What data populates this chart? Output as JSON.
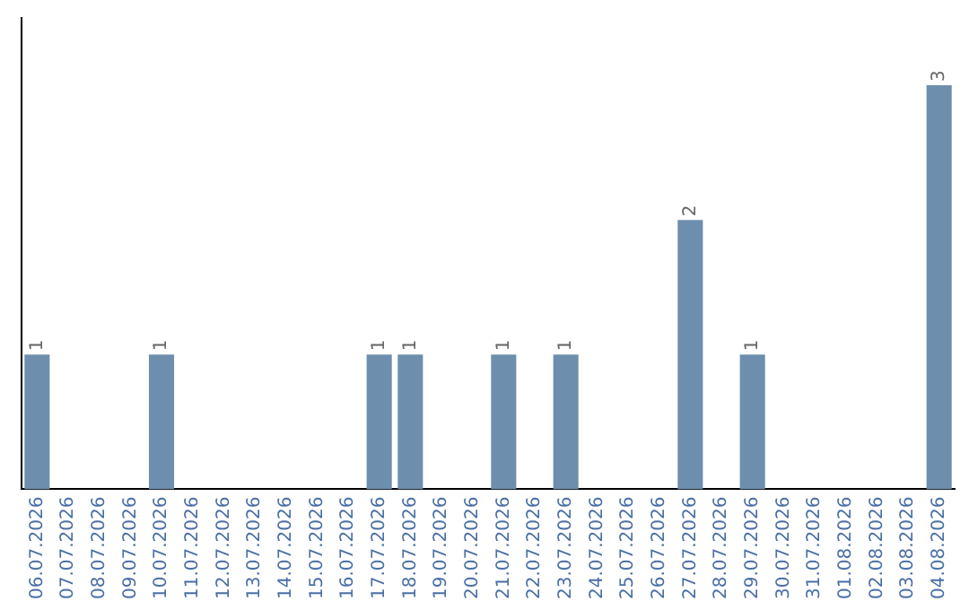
{
  "chart_data": {
    "type": "bar",
    "categories": [
      "06.07.2026",
      "07.07.2026",
      "08.07.2026",
      "09.07.2026",
      "10.07.2026",
      "11.07.2026",
      "12.07.2026",
      "13.07.2026",
      "14.07.2026",
      "15.07.2026",
      "16.07.2026",
      "17.07.2026",
      "18.07.2026",
      "19.07.2026",
      "20.07.2026",
      "21.07.2026",
      "22.07.2026",
      "23.07.2026",
      "24.07.2026",
      "25.07.2026",
      "26.07.2026",
      "27.07.2026",
      "28.07.2026",
      "29.07.2026",
      "30.07.2026",
      "31.07.2026",
      "01.08.2026",
      "02.08.2026",
      "03.08.2026",
      "04.08.2026"
    ],
    "values": [
      1,
      0,
      0,
      0,
      1,
      0,
      0,
      0,
      0,
      0,
      0,
      1,
      1,
      0,
      0,
      1,
      0,
      1,
      0,
      0,
      0,
      2,
      0,
      1,
      0,
      0,
      0,
      0,
      0,
      3
    ],
    "value_labels": [
      "1",
      null,
      null,
      null,
      "1",
      null,
      null,
      null,
      null,
      null,
      null,
      "1",
      "1",
      null,
      null,
      "1",
      null,
      "1",
      null,
      null,
      null,
      "2",
      null,
      "1",
      null,
      null,
      null,
      null,
      null,
      "3"
    ],
    "color": "#6d8fad",
    "grid": false,
    "legend": false
  }
}
